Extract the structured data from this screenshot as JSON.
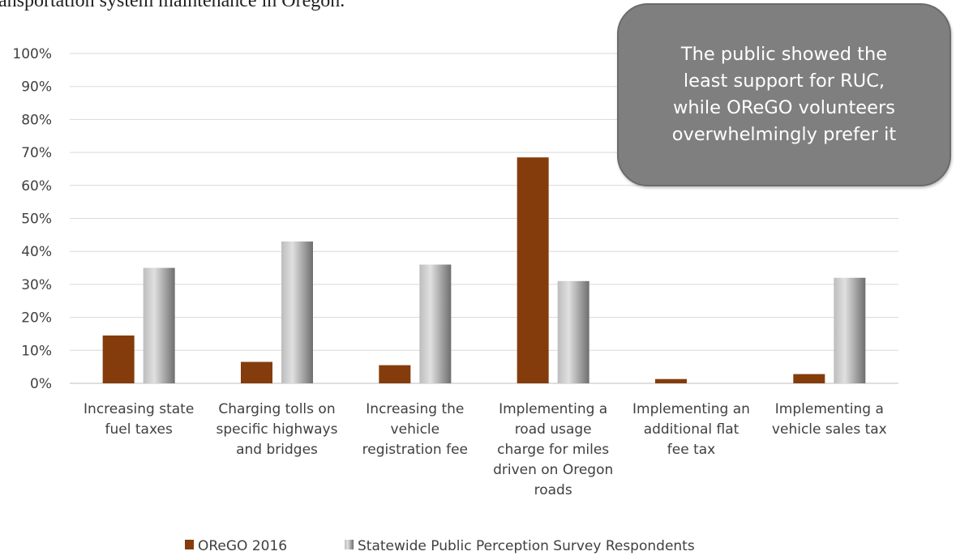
{
  "page": {
    "intro_text_fragment": "ansportation system maintenance in Oregon."
  },
  "callout": {
    "text": "The public showed the\nleast support for RUC,\nwhile OReGO volunteers\noverwhelmingly prefer it"
  },
  "chart_data": {
    "type": "bar",
    "title": "",
    "xlabel": "",
    "ylabel": "",
    "ylim": [
      0,
      100
    ],
    "y_ticks": [
      "0%",
      "10%",
      "20%",
      "30%",
      "40%",
      "50%",
      "60%",
      "70%",
      "80%",
      "90%",
      "100%"
    ],
    "grid": true,
    "legend_position": "bottom",
    "categories": [
      [
        "Increasing state",
        "fuel taxes"
      ],
      [
        "Charging tolls on",
        "specific highways",
        "and bridges"
      ],
      [
        "Increasing the",
        "vehicle",
        "registration fee"
      ],
      [
        "Implementing a",
        "road usage",
        "charge for miles",
        "driven on Oregon",
        "roads"
      ],
      [
        "Implementing an",
        "additional flat",
        "fee tax"
      ],
      [
        "Implementing a",
        "vehicle sales tax"
      ]
    ],
    "series": [
      {
        "name": "OReGO 2016",
        "color": "#843c0c",
        "values": [
          14.5,
          6.5,
          5.5,
          68.5,
          1.3,
          2.8
        ]
      },
      {
        "name": "Statewide Public Perception Survey Respondents",
        "color": "#a5a5a5",
        "values": [
          35,
          43,
          36,
          31,
          0,
          32
        ]
      }
    ]
  }
}
